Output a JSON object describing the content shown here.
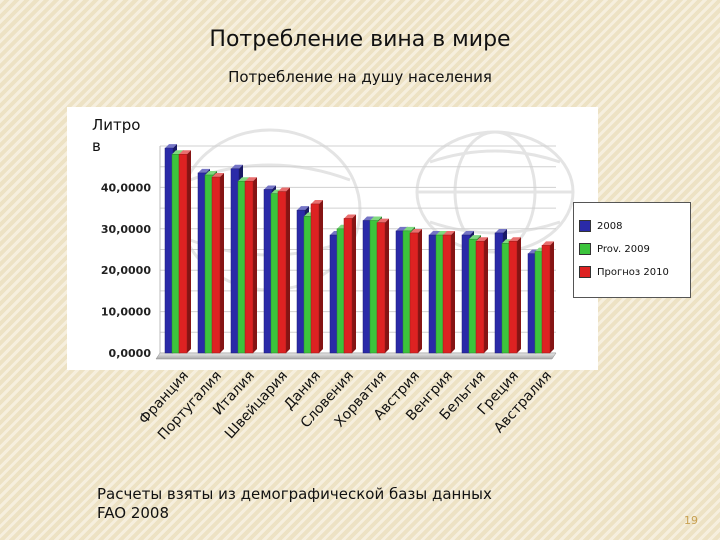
{
  "slide": {
    "title": "Потребление вина в мире",
    "subtitle": "Потребление на душу населения",
    "footnote_line1": "Расчеты взяты из демографической базы данных",
    "footnote_line2": "FAO 2008",
    "page_number": "19"
  },
  "chart_data": {
    "type": "bar",
    "title": "",
    "ylabel_line1": "Литро",
    "ylabel_line2": "в",
    "xlabel": "",
    "ylim": [
      0,
      50
    ],
    "yticks": [
      0,
      10,
      20,
      30,
      40
    ],
    "ytick_labels": [
      "0,0000",
      "10,0000",
      "20,0000",
      "30,0000",
      "40,0000"
    ],
    "categories": [
      "Франция",
      "Португалия",
      "Италия",
      "Швейцария",
      "Дания",
      "Словения",
      "Хорватия",
      "Австрия",
      "Венгрия",
      "Бельгия",
      "Греция",
      "Австралия"
    ],
    "series": [
      {
        "name": "2008",
        "color": "#2a2aa8",
        "values": [
          49.5,
          43.5,
          44.5,
          39.5,
          34.5,
          28.5,
          32.0,
          29.5,
          28.5,
          28.5,
          29.0,
          24.0
        ]
      },
      {
        "name": "Prov. 2009",
        "color": "#3cc43c",
        "values": [
          48.0,
          43.0,
          41.5,
          38.5,
          33.0,
          30.0,
          32.0,
          29.5,
          28.5,
          27.5,
          26.5,
          24.5
        ]
      },
      {
        "name": "Прогноз 2010",
        "color": "#dd2222",
        "values": [
          48.0,
          42.5,
          41.5,
          39.0,
          36.0,
          32.5,
          31.5,
          29.0,
          28.5,
          27.0,
          27.0,
          26.0
        ]
      }
    ],
    "legend_position": "right",
    "grid": true
  }
}
